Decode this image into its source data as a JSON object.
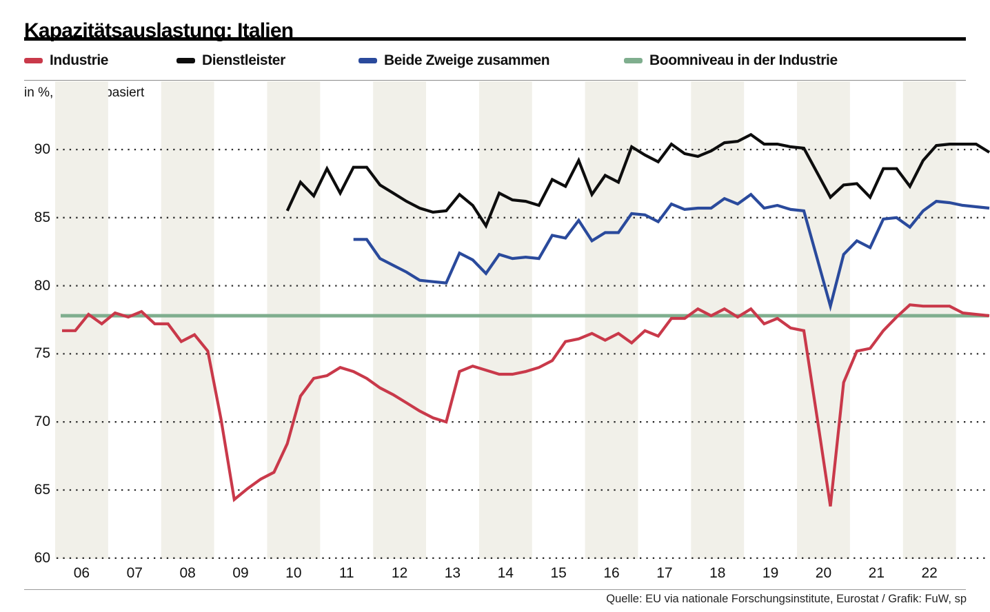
{
  "header": {
    "title": "Kapazitätsauslastung: Italien"
  },
  "legend": [
    {
      "label": "Industrie",
      "color": "#c9394a"
    },
    {
      "label": "Dienstleister",
      "color": "#0d0d0d"
    },
    {
      "label": "Beide Zweige zusammen",
      "color": "#2a4a9c"
    },
    {
      "label": "Boomniveau in der Industrie",
      "color": "#7fae8e"
    }
  ],
  "axis_note": "in %, umfragebasiert",
  "source": "Quelle: EU via nationale Forschungsinstitute, Eurostat / Grafik: FuW, sp",
  "chart_data": {
    "type": "line",
    "unit": "%",
    "frequency": "quarterly",
    "x_start": "2006Q1",
    "x_end": "2023Q3",
    "x_tick_labels": [
      "06",
      "07",
      "08",
      "09",
      "10",
      "11",
      "12",
      "13",
      "14",
      "15",
      "16",
      "17",
      "18",
      "19",
      "20",
      "21",
      "22"
    ],
    "shaded_years": [
      "06",
      "08",
      "10",
      "12",
      "14",
      "16",
      "18",
      "20",
      "22"
    ],
    "y_ticks": [
      90,
      85,
      80,
      75,
      70,
      65,
      60
    ],
    "ylim": [
      60,
      92.5
    ],
    "grid": "dotted-horizontal",
    "legend_position": "top",
    "series": [
      {
        "name": "Industrie",
        "color": "#c9394a",
        "start_index": 0,
        "start_label": "2006Q1",
        "values": [
          76.7,
          76.7,
          77.9,
          77.2,
          78.0,
          77.7,
          78.1,
          77.2,
          77.2,
          75.9,
          76.4,
          75.2,
          70.2,
          64.3,
          65.1,
          65.8,
          66.3,
          68.4,
          71.9,
          73.2,
          73.4,
          74.0,
          73.7,
          73.2,
          72.5,
          72.0,
          71.4,
          70.8,
          70.3,
          70.0,
          73.7,
          74.1,
          73.8,
          73.5,
          73.5,
          73.7,
          74.0,
          74.5,
          75.9,
          76.1,
          76.5,
          76.0,
          76.5,
          75.8,
          76.7,
          76.3,
          77.6,
          77.6,
          78.3,
          77.8,
          78.3,
          77.7,
          78.3,
          77.2,
          77.6,
          76.9,
          76.7,
          70.3,
          63.8,
          72.9,
          75.2,
          75.4,
          76.7,
          77.7,
          78.6,
          78.5,
          78.5,
          78.5,
          78.0,
          77.9,
          77.8
        ]
      },
      {
        "name": "Dienstleister",
        "color": "#0d0d0d",
        "start_index": 17,
        "start_label": "2010Q2",
        "values": [
          85.5,
          87.6,
          86.6,
          88.6,
          86.8,
          88.7,
          88.7,
          87.4,
          86.8,
          86.2,
          85.7,
          85.4,
          85.5,
          86.7,
          85.9,
          84.4,
          86.8,
          86.3,
          86.2,
          85.9,
          87.8,
          87.3,
          89.2,
          86.7,
          88.1,
          87.6,
          90.2,
          89.6,
          89.1,
          90.4,
          89.7,
          89.5,
          89.9,
          90.5,
          90.6,
          91.1,
          90.4,
          90.4,
          90.2,
          90.1,
          88.3,
          86.5,
          87.4,
          87.5,
          86.5,
          88.6,
          88.6,
          87.3,
          89.2,
          90.3,
          90.4,
          90.4,
          90.4,
          89.8
        ]
      },
      {
        "name": "Beide Zweige zusammen",
        "color": "#2a4a9c",
        "start_index": 22,
        "start_label": "2011Q3",
        "values": [
          83.4,
          83.4,
          82.0,
          81.5,
          81.0,
          80.4,
          80.3,
          80.2,
          82.4,
          81.9,
          80.9,
          82.3,
          82.0,
          82.1,
          82.0,
          83.7,
          83.5,
          84.8,
          83.3,
          83.9,
          83.9,
          85.3,
          85.2,
          84.7,
          86.0,
          85.6,
          85.7,
          85.7,
          86.4,
          86.0,
          86.7,
          85.7,
          85.9,
          85.6,
          85.5,
          82.0,
          78.5,
          82.3,
          83.3,
          82.8,
          84.9,
          85.0,
          84.3,
          85.5,
          86.2,
          86.1,
          85.9,
          85.8,
          85.7
        ]
      },
      {
        "name": "Boomniveau in der Industrie",
        "color": "#7fae8e",
        "type": "hline",
        "value": 77.8
      }
    ]
  }
}
